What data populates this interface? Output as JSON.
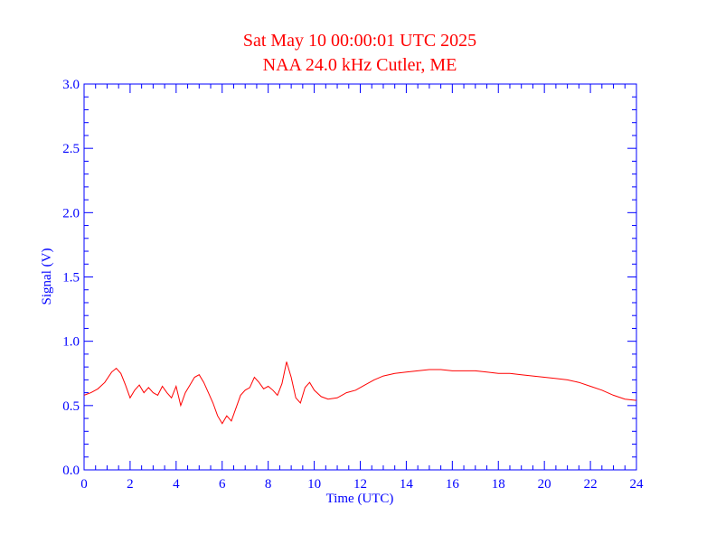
{
  "chart_data": {
    "type": "line",
    "title": "Sat May 10 00:00:01 UTC 2025",
    "subtitle": "NAA 24.0 kHz Cutler, ME",
    "xlabel": "Time (UTC)",
    "ylabel": "Signal (V)",
    "xlim": [
      0,
      24
    ],
    "ylim": [
      0.0,
      3.0
    ],
    "x_ticks": [
      "0",
      "2",
      "4",
      "6",
      "8",
      "10",
      "12",
      "14",
      "16",
      "18",
      "20",
      "22",
      "24"
    ],
    "y_ticks": [
      "0.0",
      "0.5",
      "1.0",
      "1.5",
      "2.0",
      "2.5",
      "3.0"
    ],
    "grid": false,
    "colors": {
      "title": "#ff0000",
      "axes": "#0000ff",
      "series": "#ff0000"
    },
    "series": [
      {
        "x": [
          0.0,
          0.3,
          0.6,
          0.9,
          1.2,
          1.4,
          1.6,
          1.8,
          2.0,
          2.2,
          2.4,
          2.6,
          2.8,
          3.0,
          3.2,
          3.4,
          3.6,
          3.8,
          4.0,
          4.2,
          4.4,
          4.6,
          4.8,
          5.0,
          5.2,
          5.4,
          5.6,
          5.8,
          6.0,
          6.2,
          6.4,
          6.6,
          6.8,
          7.0,
          7.2,
          7.4,
          7.6,
          7.8,
          8.0,
          8.2,
          8.4,
          8.6,
          8.8,
          9.0,
          9.2,
          9.4,
          9.6,
          9.8,
          10.0,
          10.3,
          10.6,
          11.0,
          11.4,
          11.8,
          12.2,
          12.6,
          13.0,
          13.5,
          14.0,
          14.5,
          15.0,
          15.5,
          16.0,
          16.5,
          17.0,
          17.5,
          18.0,
          18.5,
          19.0,
          19.5,
          20.0,
          20.5,
          21.0,
          21.5,
          22.0,
          22.5,
          23.0,
          23.5,
          24.0
        ],
        "values": [
          0.58,
          0.6,
          0.63,
          0.68,
          0.76,
          0.79,
          0.75,
          0.66,
          0.56,
          0.62,
          0.66,
          0.6,
          0.64,
          0.6,
          0.58,
          0.65,
          0.6,
          0.56,
          0.65,
          0.5,
          0.6,
          0.66,
          0.72,
          0.74,
          0.68,
          0.6,
          0.52,
          0.42,
          0.36,
          0.42,
          0.38,
          0.48,
          0.58,
          0.62,
          0.64,
          0.72,
          0.68,
          0.63,
          0.65,
          0.62,
          0.58,
          0.67,
          0.84,
          0.72,
          0.56,
          0.52,
          0.64,
          0.68,
          0.62,
          0.57,
          0.55,
          0.56,
          0.6,
          0.62,
          0.66,
          0.7,
          0.73,
          0.75,
          0.76,
          0.77,
          0.78,
          0.78,
          0.77,
          0.77,
          0.77,
          0.76,
          0.75,
          0.75,
          0.74,
          0.73,
          0.72,
          0.71,
          0.7,
          0.68,
          0.65,
          0.62,
          0.58,
          0.55,
          0.54
        ]
      }
    ]
  }
}
